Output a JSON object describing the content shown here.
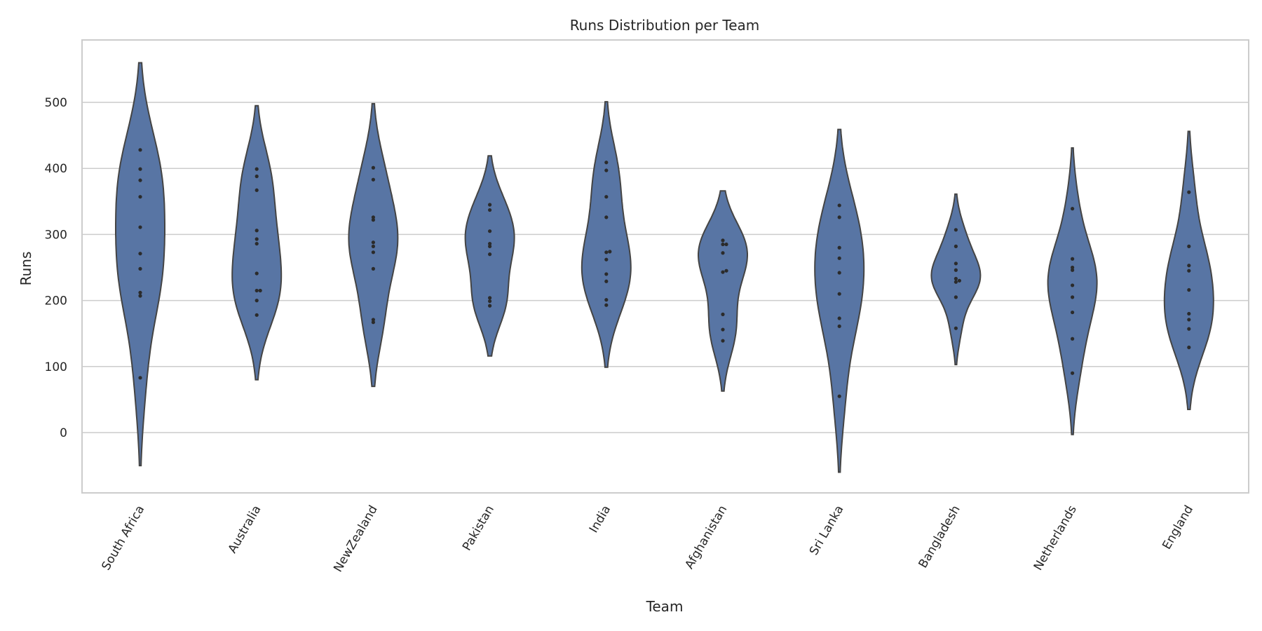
{
  "chart_data": {
    "type": "violin",
    "title": "Runs Distribution per Team",
    "xlabel": "Team",
    "ylabel": "Runs",
    "ylim": [
      -90,
      585
    ],
    "yticks": [
      0,
      100,
      200,
      300,
      400,
      500
    ],
    "grid": true,
    "legend": "none",
    "colors": {
      "violin": "#5875a4",
      "outline": "#444444",
      "points": "#2b2b2b",
      "grid": "#cccccc",
      "frame": "#cccccc"
    },
    "categories": [
      "South Africa",
      "Australia",
      "NewZealand",
      "Pakistan",
      "India",
      "Afghanistan",
      "Sri Lanka",
      "Bangladesh",
      "Netherlands",
      "England"
    ],
    "series": [
      {
        "team": "South Africa",
        "range": [
          -50,
          560
        ],
        "values": [
          428,
          399,
          382,
          357,
          311,
          271,
          248,
          212,
          207,
          83
        ]
      },
      {
        "team": "Australia",
        "range": [
          80,
          495
        ],
        "values": [
          399,
          388,
          367,
          306,
          293,
          286,
          241,
          215,
          215,
          200,
          178
        ]
      },
      {
        "team": "NewZealand",
        "range": [
          70,
          498
        ],
        "values": [
          401,
          383,
          326,
          322,
          288,
          282,
          273,
          248,
          171,
          167
        ]
      },
      {
        "team": "Pakistan",
        "range": [
          116,
          419
        ],
        "values": [
          345,
          337,
          305,
          286,
          282,
          270,
          204,
          199,
          192
        ]
      },
      {
        "team": "India",
        "range": [
          99,
          501
        ],
        "values": [
          409,
          397,
          357,
          326,
          274,
          273,
          262,
          240,
          229,
          201,
          193
        ]
      },
      {
        "team": "Afghanistan",
        "range": [
          63,
          366
        ],
        "values": [
          291,
          285,
          285,
          272,
          245,
          243,
          179,
          156,
          139
        ]
      },
      {
        "team": "Sri Lanka",
        "range": [
          -60,
          459
        ],
        "values": [
          344,
          326,
          280,
          264,
          242,
          210,
          173,
          161,
          55
        ]
      },
      {
        "team": "Bangladesh",
        "range": [
          103,
          361
        ],
        "values": [
          307,
          282,
          256,
          246,
          233,
          230,
          228,
          205,
          158
        ]
      },
      {
        "team": "Netherlands",
        "range": [
          -3,
          431
        ],
        "values": [
          339,
          263,
          250,
          246,
          223,
          205,
          182,
          142,
          90
        ]
      },
      {
        "team": "England",
        "range": [
          35,
          456
        ],
        "values": [
          364,
          282,
          253,
          245,
          216,
          180,
          171,
          157,
          129
        ]
      }
    ]
  }
}
